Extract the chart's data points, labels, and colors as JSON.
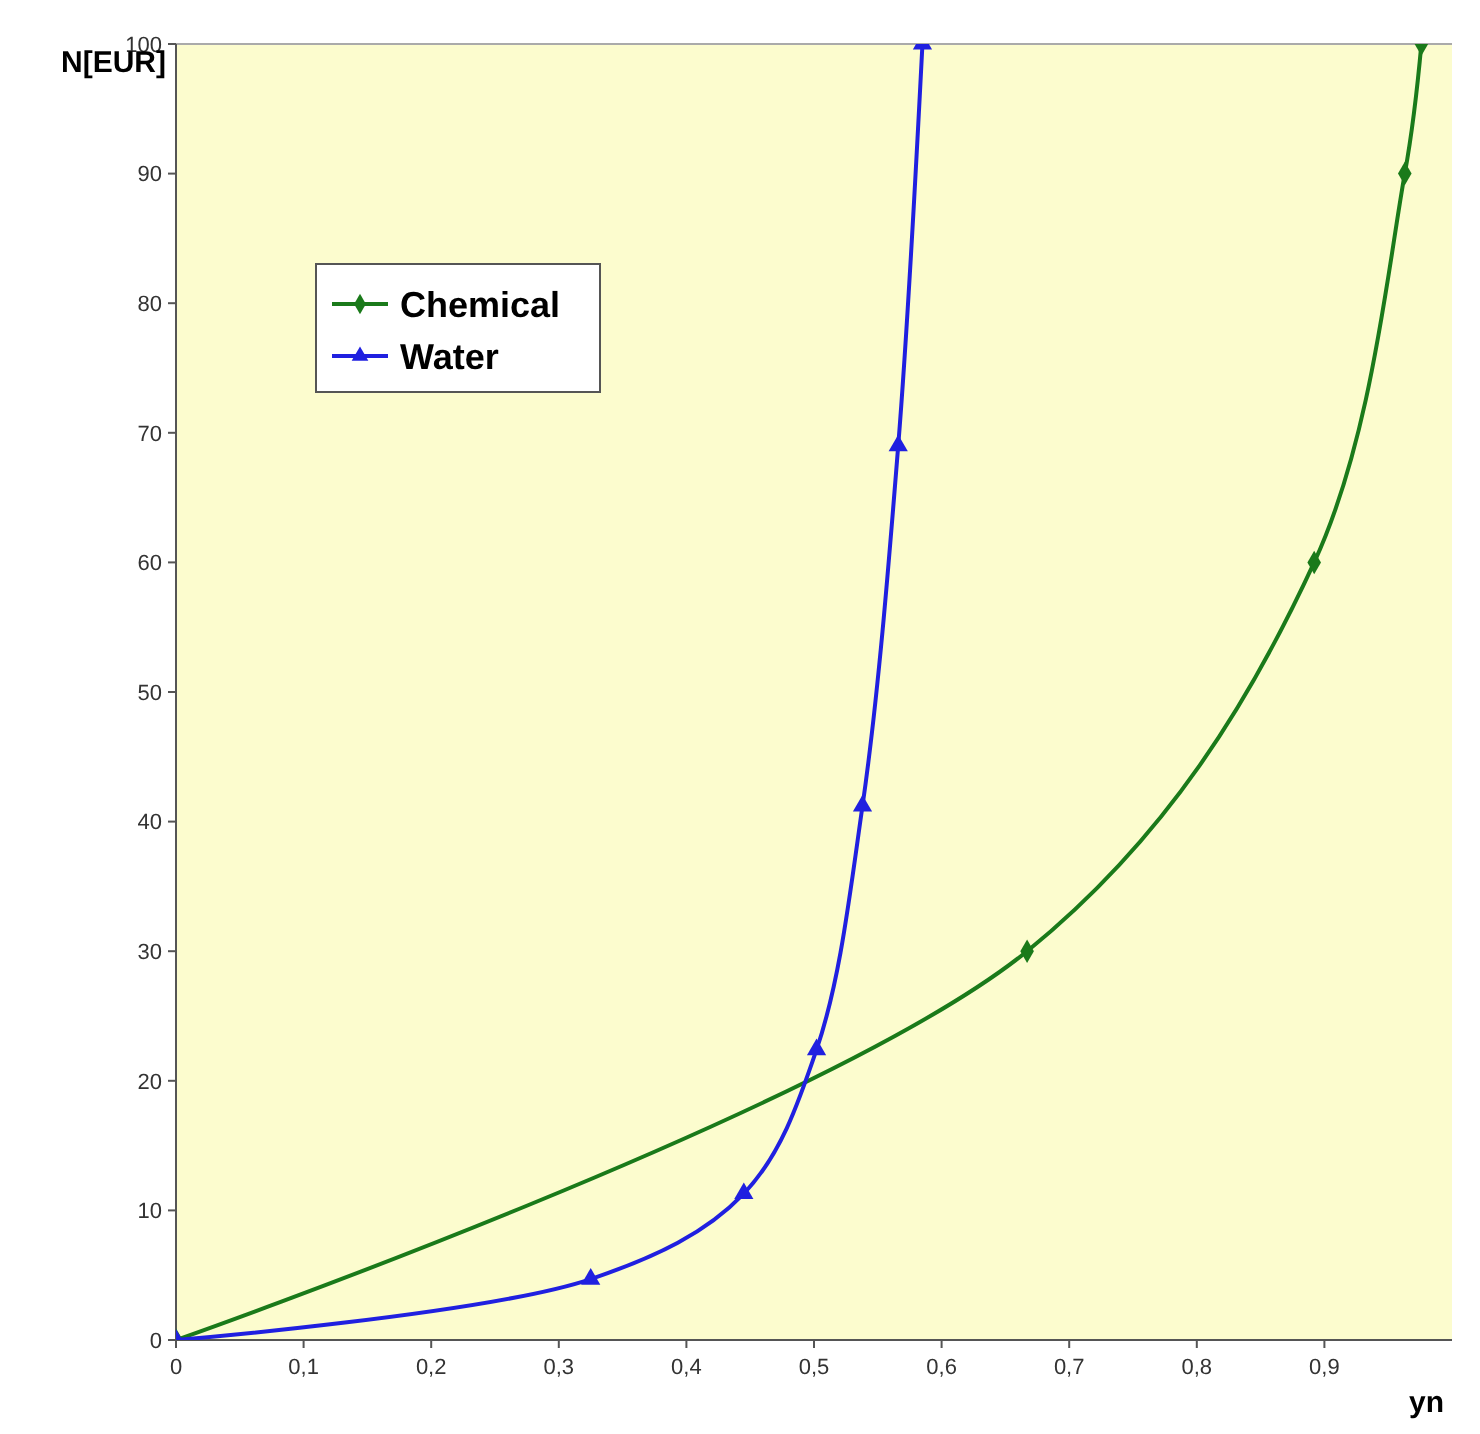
{
  "chart_data": {
    "type": "line",
    "xlabel": "yn",
    "ylabel": "N[EUR]",
    "xlim": [
      0,
      1
    ],
    "ylim": [
      0,
      100
    ],
    "xticks": [
      {
        "value": 0,
        "label": "0"
      },
      {
        "value": 0.1,
        "label": "0,1"
      },
      {
        "value": 0.2,
        "label": "0,2"
      },
      {
        "value": 0.3,
        "label": "0,3"
      },
      {
        "value": 0.4,
        "label": "0,4"
      },
      {
        "value": 0.5,
        "label": "0,5"
      },
      {
        "value": 0.6,
        "label": "0,6"
      },
      {
        "value": 0.7,
        "label": "0,7"
      },
      {
        "value": 0.8,
        "label": "0,8"
      },
      {
        "value": 0.9,
        "label": "0,9"
      }
    ],
    "yticks": [
      0,
      10,
      20,
      30,
      40,
      50,
      60,
      70,
      80,
      90,
      100
    ],
    "grid": false,
    "legend": "top left",
    "series": [
      {
        "name": "Chemical",
        "color": "#1a7a1a",
        "marker": "diamond",
        "x": [
          0,
          0.667,
          0.892,
          0.963,
          0.976
        ],
        "values": [
          0,
          30,
          60,
          90,
          100
        ]
      },
      {
        "name": "Water",
        "color": "#2020e0",
        "marker": "triangle",
        "x": [
          0,
          0.325,
          0.445,
          0.502,
          0.538,
          0.566,
          0.585
        ],
        "values": [
          0,
          4.7,
          11.3,
          22.4,
          41.2,
          69,
          100
        ]
      }
    ]
  }
}
